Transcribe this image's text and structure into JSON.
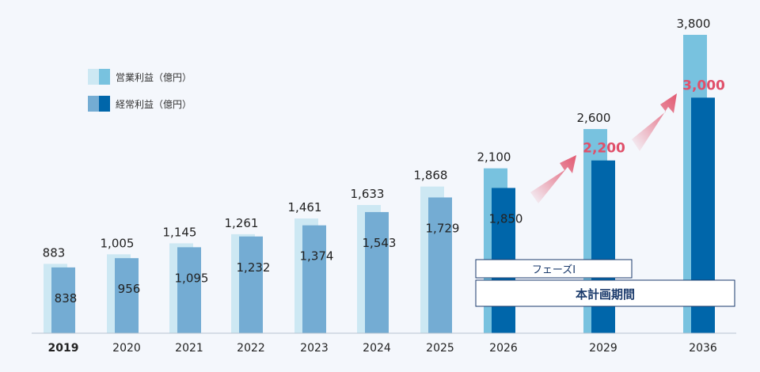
{
  "colors": {
    "op_light": "#cde8f3",
    "op_mid": "#78c2df",
    "ord_light": "#74acd3",
    "ord_dark": "#0066aa",
    "highlight": "#e0506a",
    "arrow": "#e25a72",
    "box_border": "#1a3a6b",
    "axis": "#b8c3d1"
  },
  "legend": [
    {
      "label": "営業利益（億円）"
    },
    {
      "label": "経常利益（億円）"
    }
  ],
  "annotations": {
    "phase_label": "フェーズⅠ",
    "plan_label": "本計画期間"
  },
  "chart_data": {
    "type": "bar",
    "categories": [
      "2019",
      "2020",
      "2021",
      "2022",
      "2023",
      "2024",
      "2025",
      "2026",
      "2029",
      "2036"
    ],
    "series": [
      {
        "name": "営業利益（億円）",
        "values": [
          883,
          1005,
          1145,
          1261,
          1461,
          1633,
          1868,
          2100,
          2600,
          3800
        ]
      },
      {
        "name": "経常利益（億円）",
        "values": [
          838,
          956,
          1095,
          1232,
          1374,
          1543,
          1729,
          1850,
          2200,
          3000
        ]
      }
    ],
    "value_labels": {
      "operating": [
        "883",
        "1,005",
        "1,145",
        "1,261",
        "1,461",
        "1,633",
        "1,868",
        "2,100",
        "2,600",
        "3,800"
      ],
      "ordinary": [
        "838",
        "956",
        "1,095",
        "1,232",
        "1,374",
        "1,543",
        "1,729",
        "1,850",
        "2,200",
        "3,000"
      ]
    },
    "bold_category": "2019",
    "highlighted_ordinary": [
      "2029",
      "2036"
    ],
    "ylim": [
      0,
      3800
    ],
    "grid": false,
    "legend_position": "top-left"
  }
}
